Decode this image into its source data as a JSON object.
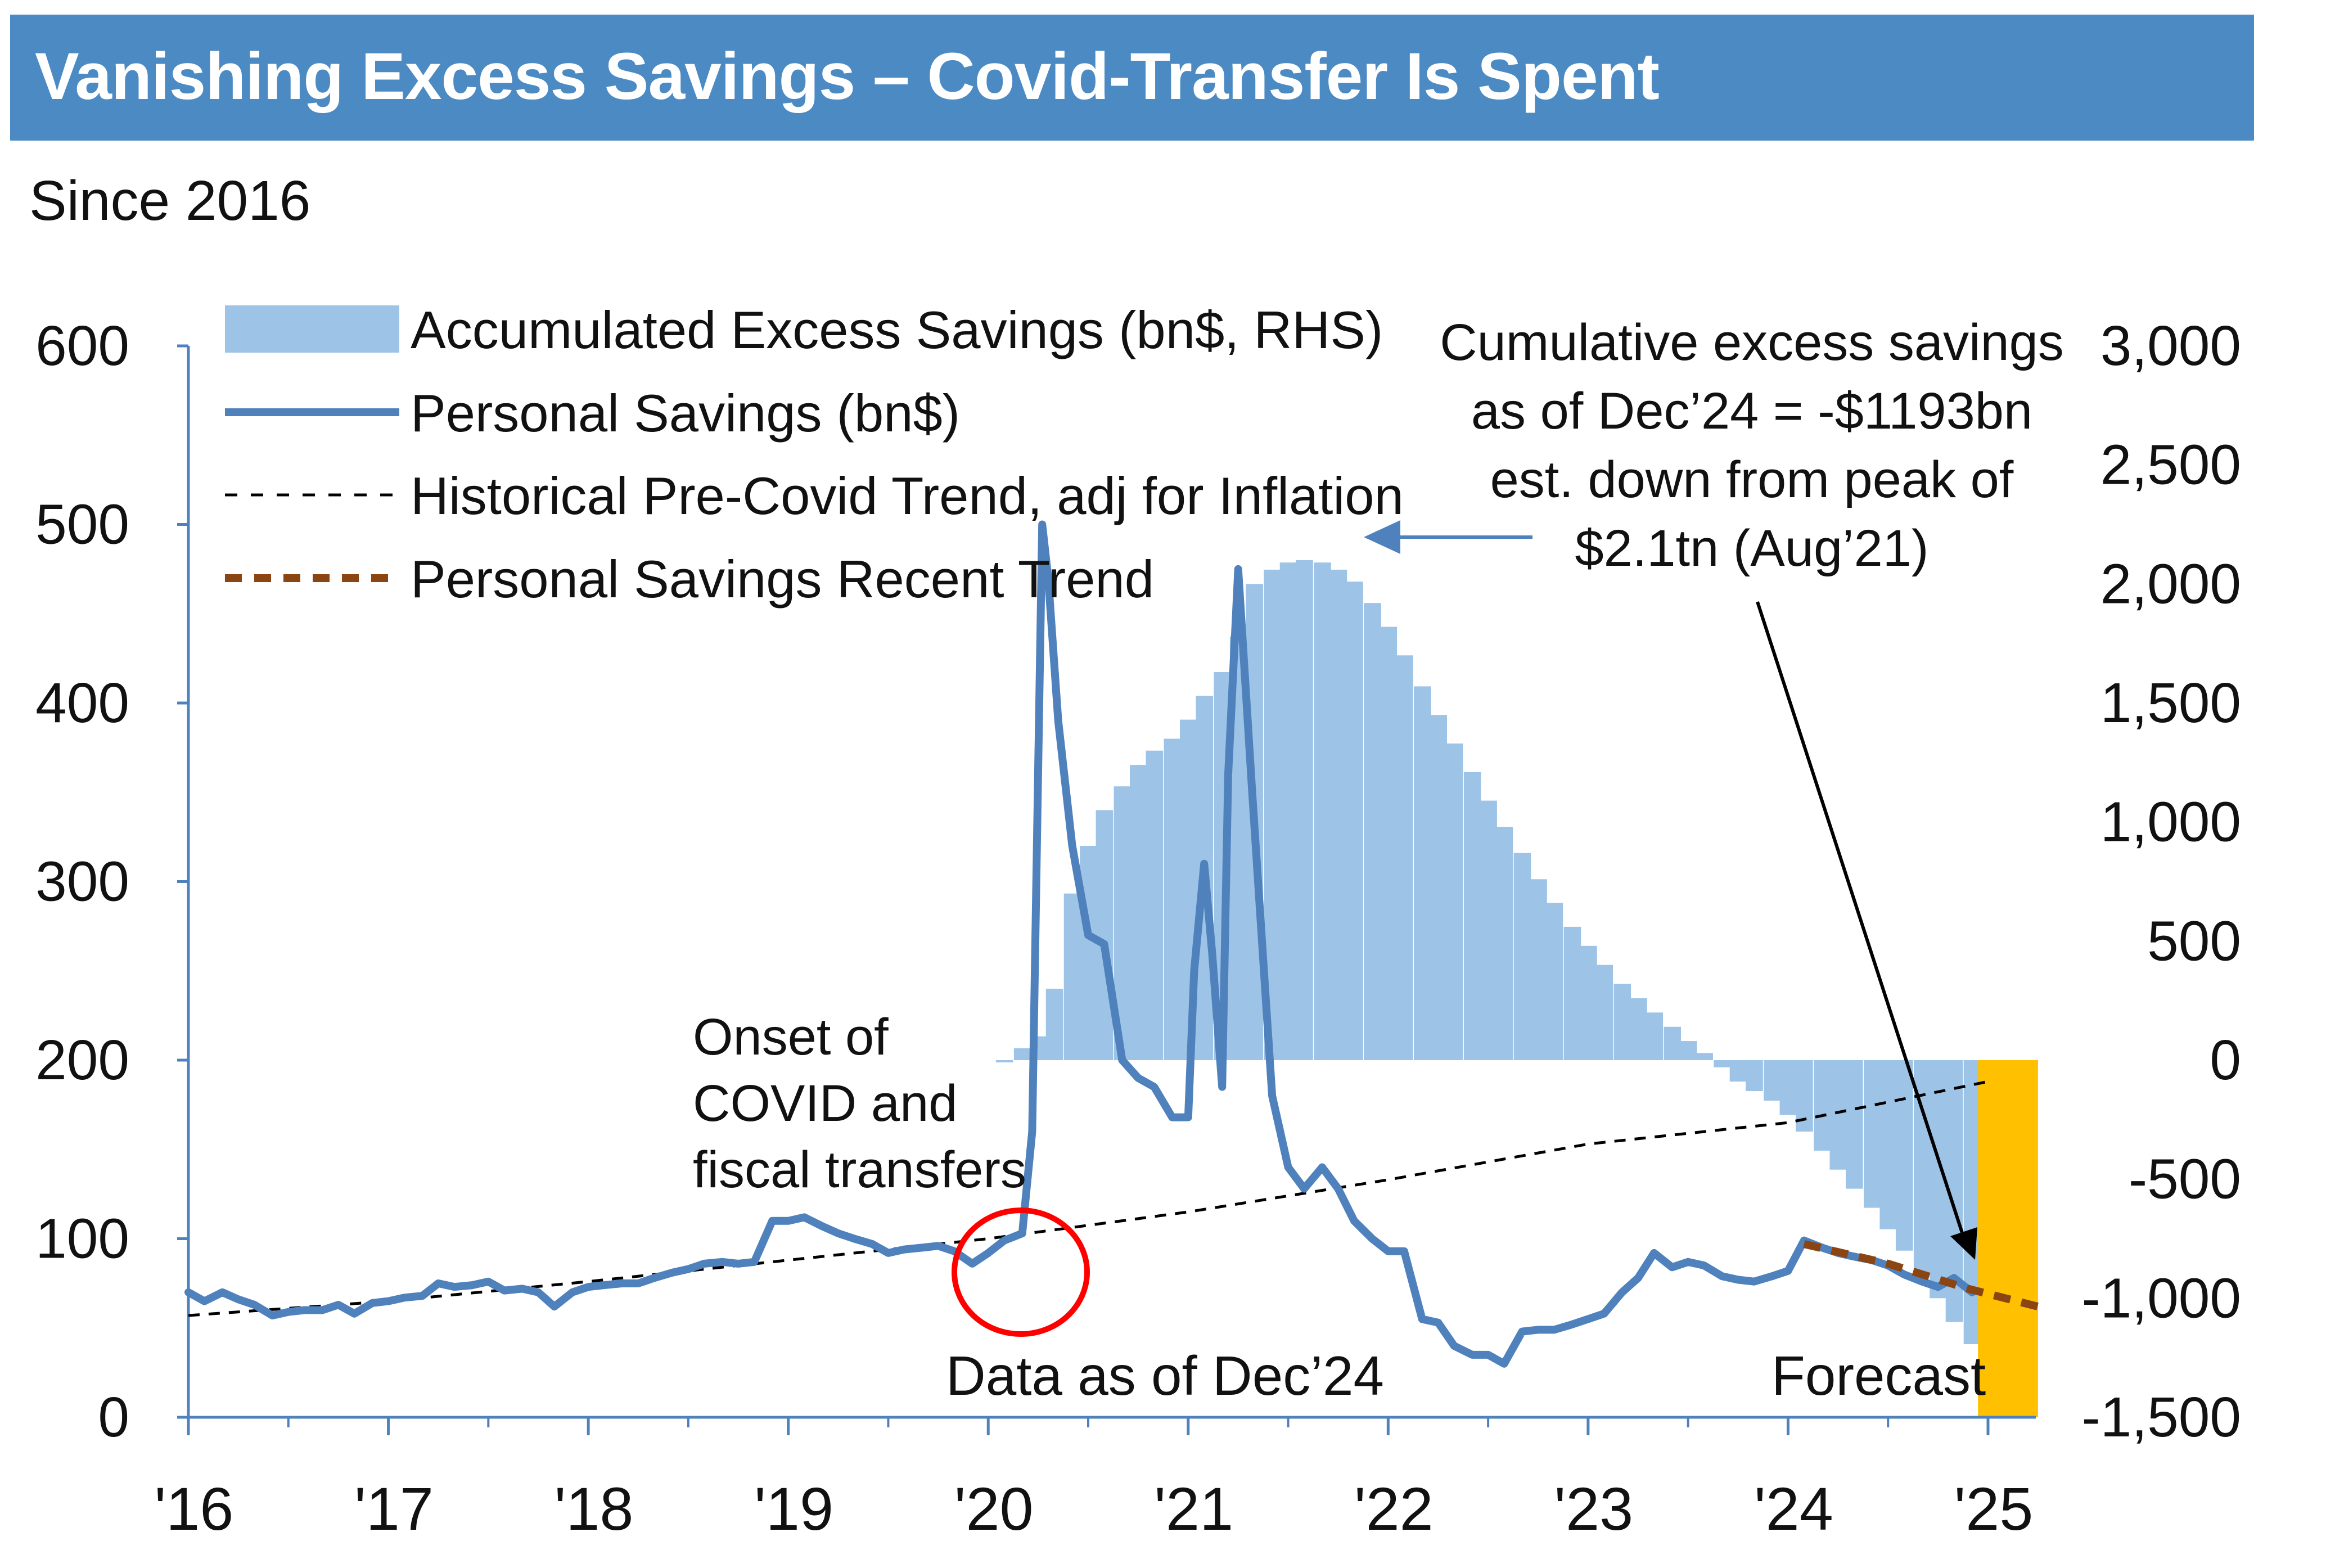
{
  "header": {
    "title": "Vanishing Excess Savings – Covid-Transfer Is Spent",
    "subtitle": "Since 2016"
  },
  "colors": {
    "banner": "#4c8ac3",
    "excess_savings_area": "#9dc3e6",
    "personal_savings_line": "#4f81bd",
    "pre_covid_trend": "#000000",
    "recent_trend": "#8b4513",
    "forecast_band": "#ffc000",
    "covid_circle": "#ff0000",
    "peak_arrow": "#4f81bd"
  },
  "chart_data": {
    "type": "line",
    "x_axis": {
      "tick_labels": [
        "'16",
        "'17",
        "'18",
        "'19",
        "'20",
        "'21",
        "'22",
        "'23",
        "'24",
        "'25"
      ],
      "range": [
        2016.0,
        2025.25
      ]
    },
    "y_axis_left": {
      "tick_labels": [
        "0",
        "100",
        "200",
        "300",
        "400",
        "500",
        "600"
      ],
      "range": [
        0,
        600
      ]
    },
    "y_axis_right": {
      "tick_labels": [
        "-1,500",
        "-1,000",
        "-500",
        "0",
        "500",
        "1,000",
        "1,500",
        "2,000",
        "2,500",
        "3,000"
      ],
      "range": [
        -1500,
        3000
      ]
    },
    "legend": {
      "placement": "top-left",
      "items": [
        {
          "label": "Accumulated Excess Savings (bn$, RHS)",
          "style": "area"
        },
        {
          "label": "Personal Savings (bn$)",
          "style": "solid-line"
        },
        {
          "label": "Historical Pre-Covid Trend, adj for Inflation",
          "style": "dashed-line"
        },
        {
          "label": "Personal Savings Recent Trend",
          "style": "thick-dashed-line"
        }
      ]
    },
    "series": [
      {
        "name": "Personal Savings (bn$)",
        "axis": "left",
        "points": [
          [
            2016.0,
            70
          ],
          [
            2016.08,
            65
          ],
          [
            2016.17,
            70
          ],
          [
            2016.25,
            66
          ],
          [
            2016.33,
            63
          ],
          [
            2016.42,
            57
          ],
          [
            2016.5,
            59
          ],
          [
            2016.58,
            60
          ],
          [
            2016.67,
            60
          ],
          [
            2016.75,
            63
          ],
          [
            2016.83,
            58
          ],
          [
            2016.92,
            64
          ],
          [
            2017.0,
            65
          ],
          [
            2017.08,
            67
          ],
          [
            2017.17,
            68
          ],
          [
            2017.25,
            75
          ],
          [
            2017.33,
            73
          ],
          [
            2017.42,
            74
          ],
          [
            2017.5,
            76
          ],
          [
            2017.58,
            71
          ],
          [
            2017.67,
            72
          ],
          [
            2017.75,
            70
          ],
          [
            2017.83,
            62
          ],
          [
            2017.92,
            70
          ],
          [
            2018.0,
            73
          ],
          [
            2018.08,
            74
          ],
          [
            2018.17,
            75
          ],
          [
            2018.25,
            75
          ],
          [
            2018.33,
            78
          ],
          [
            2018.42,
            81
          ],
          [
            2018.5,
            83
          ],
          [
            2018.58,
            86
          ],
          [
            2018.67,
            87
          ],
          [
            2018.75,
            86
          ],
          [
            2018.83,
            87
          ],
          [
            2018.92,
            110
          ],
          [
            2019.0,
            110
          ],
          [
            2019.08,
            112
          ],
          [
            2019.17,
            107
          ],
          [
            2019.25,
            103
          ],
          [
            2019.33,
            100
          ],
          [
            2019.42,
            97
          ],
          [
            2019.5,
            92
          ],
          [
            2019.58,
            94
          ],
          [
            2019.67,
            95
          ],
          [
            2019.75,
            96
          ],
          [
            2019.83,
            93
          ],
          [
            2019.92,
            86
          ],
          [
            2020.0,
            92
          ],
          [
            2020.08,
            99
          ],
          [
            2020.17,
            103
          ],
          [
            2020.22,
            160
          ],
          [
            2020.27,
            500
          ],
          [
            2020.3,
            470
          ],
          [
            2020.35,
            390
          ],
          [
            2020.42,
            320
          ],
          [
            2020.5,
            270
          ],
          [
            2020.58,
            265
          ],
          [
            2020.67,
            200
          ],
          [
            2020.75,
            190
          ],
          [
            2020.83,
            185
          ],
          [
            2020.92,
            168
          ],
          [
            2021.0,
            168
          ],
          [
            2021.03,
            250
          ],
          [
            2021.08,
            310
          ],
          [
            2021.12,
            260
          ],
          [
            2021.17,
            185
          ],
          [
            2021.2,
            360
          ],
          [
            2021.25,
            475
          ],
          [
            2021.32,
            350
          ],
          [
            2021.42,
            180
          ],
          [
            2021.5,
            140
          ],
          [
            2021.58,
            128
          ],
          [
            2021.67,
            140
          ],
          [
            2021.75,
            128
          ],
          [
            2021.83,
            110
          ],
          [
            2021.92,
            100
          ],
          [
            2022.0,
            93
          ],
          [
            2022.08,
            93
          ],
          [
            2022.17,
            55
          ],
          [
            2022.25,
            53
          ],
          [
            2022.33,
            40
          ],
          [
            2022.42,
            35
          ],
          [
            2022.5,
            35
          ],
          [
            2022.58,
            30
          ],
          [
            2022.67,
            48
          ],
          [
            2022.75,
            49
          ],
          [
            2022.83,
            49
          ],
          [
            2022.92,
            52
          ],
          [
            2023.0,
            55
          ],
          [
            2023.08,
            58
          ],
          [
            2023.17,
            70
          ],
          [
            2023.25,
            78
          ],
          [
            2023.33,
            92
          ],
          [
            2023.42,
            84
          ],
          [
            2023.5,
            87
          ],
          [
            2023.58,
            85
          ],
          [
            2023.67,
            79
          ],
          [
            2023.75,
            77
          ],
          [
            2023.83,
            76
          ],
          [
            2023.92,
            79
          ],
          [
            2024.0,
            82
          ],
          [
            2024.08,
            99
          ],
          [
            2024.17,
            95
          ],
          [
            2024.25,
            92
          ],
          [
            2024.33,
            90
          ],
          [
            2024.42,
            88
          ],
          [
            2024.5,
            85
          ],
          [
            2024.58,
            80
          ],
          [
            2024.67,
            76
          ],
          [
            2024.75,
            73
          ],
          [
            2024.83,
            78
          ],
          [
            2024.92,
            70
          ]
        ]
      },
      {
        "name": "Historical Pre-Covid Trend, adj for Inflation",
        "axis": "left",
        "points": [
          [
            2016.0,
            57
          ],
          [
            2017.0,
            65
          ],
          [
            2018.0,
            76
          ],
          [
            2019.0,
            88
          ],
          [
            2020.0,
            100
          ],
          [
            2021.0,
            115
          ],
          [
            2022.0,
            133
          ],
          [
            2023.0,
            153
          ],
          [
            2024.0,
            165
          ],
          [
            2025.0,
            188
          ]
        ]
      },
      {
        "name": "Personal Savings Recent Trend",
        "axis": "left",
        "points": [
          [
            2024.08,
            97
          ],
          [
            2024.5,
            86
          ],
          [
            2024.9,
            72
          ],
          [
            2025.25,
            62
          ]
        ]
      },
      {
        "name": "Accumulated Excess Savings (bn$, RHS)",
        "axis": "right",
        "points": [
          [
            2020.08,
            0
          ],
          [
            2020.17,
            50
          ],
          [
            2020.25,
            100
          ],
          [
            2020.33,
            300
          ],
          [
            2020.42,
            700
          ],
          [
            2020.5,
            900
          ],
          [
            2020.58,
            1050
          ],
          [
            2020.67,
            1150
          ],
          [
            2020.75,
            1240
          ],
          [
            2020.83,
            1300
          ],
          [
            2020.92,
            1350
          ],
          [
            2021.0,
            1430
          ],
          [
            2021.08,
            1530
          ],
          [
            2021.17,
            1630
          ],
          [
            2021.25,
            1780
          ],
          [
            2021.33,
            2000
          ],
          [
            2021.42,
            2060
          ],
          [
            2021.5,
            2090
          ],
          [
            2021.58,
            2100
          ],
          [
            2021.67,
            2090
          ],
          [
            2021.75,
            2060
          ],
          [
            2021.83,
            2010
          ],
          [
            2021.92,
            1920
          ],
          [
            2022.0,
            1820
          ],
          [
            2022.08,
            1700
          ],
          [
            2022.17,
            1570
          ],
          [
            2022.25,
            1450
          ],
          [
            2022.33,
            1330
          ],
          [
            2022.42,
            1210
          ],
          [
            2022.5,
            1090
          ],
          [
            2022.58,
            980
          ],
          [
            2022.67,
            870
          ],
          [
            2022.75,
            760
          ],
          [
            2022.83,
            660
          ],
          [
            2022.92,
            560
          ],
          [
            2023.0,
            480
          ],
          [
            2023.08,
            400
          ],
          [
            2023.17,
            320
          ],
          [
            2023.25,
            260
          ],
          [
            2023.33,
            200
          ],
          [
            2023.42,
            140
          ],
          [
            2023.5,
            80
          ],
          [
            2023.58,
            30
          ],
          [
            2023.67,
            -30
          ],
          [
            2023.75,
            -90
          ],
          [
            2023.83,
            -130
          ],
          [
            2023.92,
            -170
          ],
          [
            2024.0,
            -230
          ],
          [
            2024.08,
            -300
          ],
          [
            2024.17,
            -380
          ],
          [
            2024.25,
            -460
          ],
          [
            2024.33,
            -540
          ],
          [
            2024.42,
            -620
          ],
          [
            2024.5,
            -710
          ],
          [
            2024.58,
            -800
          ],
          [
            2024.67,
            -900
          ],
          [
            2024.75,
            -1000
          ],
          [
            2024.83,
            -1100
          ],
          [
            2024.92,
            -1193
          ]
        ]
      }
    ],
    "forecast_range": [
      2024.95,
      2025.25
    ],
    "annotations": [
      {
        "id": "peak",
        "text": [
          "Cumulative excess savings",
          "as of Dec’24 = -$1193bn",
          "est. down from peak of",
          "$2.1tn (Aug’21)"
        ]
      },
      {
        "id": "covid",
        "text": [
          "Onset of",
          "COVID and",
          "fiscal transfers"
        ]
      },
      {
        "id": "data-date",
        "text": "Data as of Dec’24"
      },
      {
        "id": "forecast",
        "text": "Forecast"
      }
    ]
  }
}
